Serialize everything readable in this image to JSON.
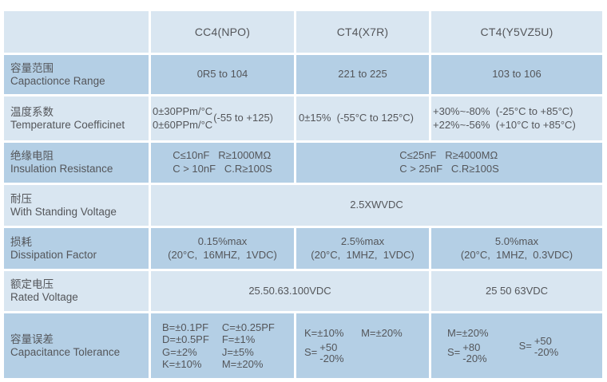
{
  "header": {
    "col1": "",
    "col2": "CC4(NPO)",
    "col3": "CT4(X7R)",
    "col4": "CT4(Y5VZ5U)"
  },
  "rows": {
    "capacitance_range": {
      "label_cn": "容量范围",
      "label_en": "Capactionce Range",
      "cc4": "0R5 to 104",
      "x7r": "221 to 225",
      "y5v": "103 to 106"
    },
    "temperature_coefficient": {
      "label_cn": "温度系数",
      "label_en": "Temperature Coefficinet",
      "cc4_lines": "0±30PPm/°C\n0±60PPm/°C",
      "cc4_range": "(-55 to +125)",
      "x7r": "0±15%  (-55°C to 125°C)",
      "y5v_lines": "+30%~-80%  (-25°C to +85°C)\n+22%~-56%  (+10°C to +85°C)"
    },
    "insulation_resistance": {
      "label_cn": "绝缘电阻",
      "label_en": "Insulation Resistance",
      "cc4": "C≤10nF   R≥1000MΩ\nC > 10nF   C.R≥100S",
      "ct4_merged": "C≤25nF   R≥4000MΩ\nC > 25nF   C.R≥100S"
    },
    "withstanding_voltage": {
      "label_cn": "耐压",
      "label_en": "With Standing Voltage",
      "all": "2.5XWVDC"
    },
    "dissipation_factor": {
      "label_cn": "损耗",
      "label_en": "Dissipation Factor",
      "cc4": "0.15%max\n(20°C,  16MHZ,  1VDC)",
      "x7r": "2.5%max\n(20°C,  1MHZ,  1VDC)",
      "y5v": "5.0%max\n(20°C,  1MHZ,  0.3VDC)"
    },
    "rated_voltage": {
      "label_cn": "额定电压",
      "label_en": "Rated Voltage",
      "cc4_x7r": "25.50.63.100VDC",
      "y5v": "25 50 63VDC"
    },
    "capacitance_tolerance": {
      "label_cn": "容量误差",
      "label_en": "Capacitance Tolerance",
      "cc4_col_a": "B=±0.1PF\nD=±0.5PF\nG=±2%\nK=±10%",
      "cc4_col_b": "C=±0.25PF\nF=±1%\nJ=±5%\nM=±20%",
      "x7r_line": "K=±10%      M=±20%",
      "x7r_s_prefix": "S=",
      "x7r_s_top": "+50",
      "x7r_s_bottom": "-20%",
      "y5v_line": "M=±20%",
      "y5v_s1_prefix": "S=",
      "y5v_s1_top": "+80",
      "y5v_s1_bottom": "-20%",
      "y5v_s2_prefix": "S=",
      "y5v_s2_top": "+50",
      "y5v_s2_bottom": "-20%"
    }
  },
  "colors": {
    "row_light": "#d9e6f1",
    "row_dark": "#b4cfe5",
    "text": "#54565a",
    "grid_gap": "#ffffff"
  }
}
